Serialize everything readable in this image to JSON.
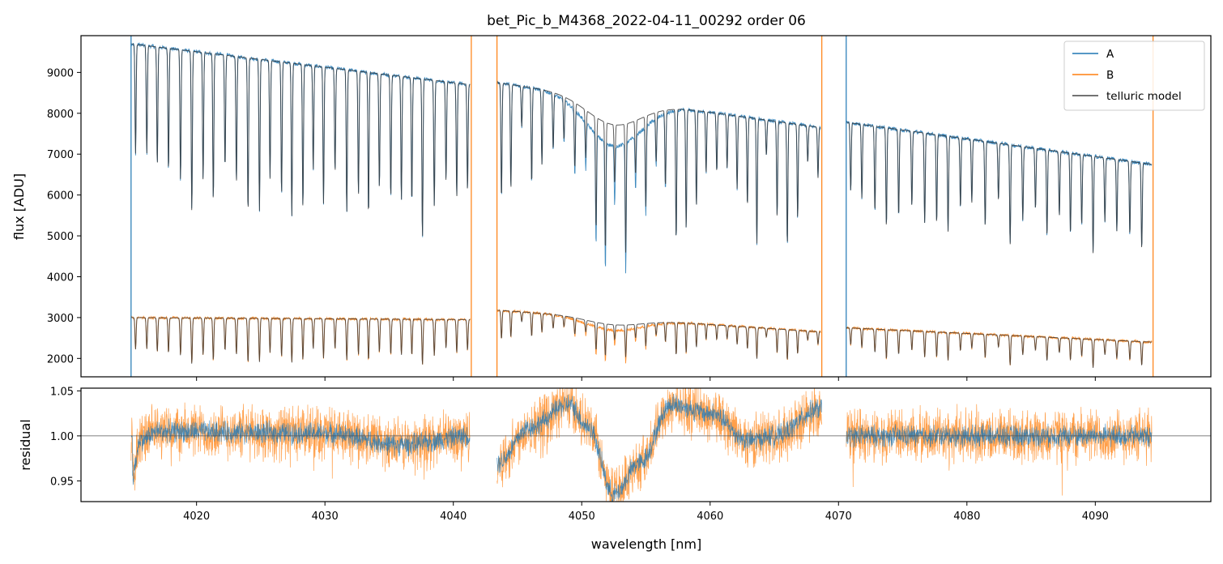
{
  "chart_data": [
    {
      "type": "line",
      "panel": "top",
      "title": "bet_Pic_b_M4368_2022-04-11_00292  order 06",
      "xlabel": "",
      "ylabel": "flux [ADU]",
      "xlim": [
        4011,
        4099
      ],
      "ylim": [
        1550,
        9900
      ],
      "yticks": [
        2000,
        3000,
        4000,
        5000,
        6000,
        7000,
        8000,
        9000
      ],
      "xticks": [
        4020,
        4030,
        4040,
        4050,
        4060,
        4070,
        4080,
        4090
      ],
      "segments": [
        {
          "x0": 4014.9,
          "x1": 4041.3,
          "a_start": 9700,
          "a_end": 8700,
          "b_start": 3000,
          "b_end": 2950,
          "line_spacing": 0.85,
          "a_depth": [
            2400,
            4000
          ],
          "b_depth": [
            700,
            1150
          ]
        },
        {
          "x0": 4043.4,
          "x1": 4068.6,
          "a_start": 8750,
          "a_end": 7650,
          "b_start": 3180,
          "b_end": 2650,
          "dip_center": 4052.5,
          "dip_a": 1150,
          "dip_b": 300,
          "line_spacing": 0.8,
          "a_depth": [
            800,
            3200
          ],
          "b_depth": [
            200,
            800
          ]
        },
        {
          "x0": 4070.6,
          "x1": 4094.4,
          "a_start": 7780,
          "a_end": 6750,
          "b_start": 2750,
          "b_end": 2400,
          "line_spacing": 0.95,
          "a_depth": [
            1400,
            2500
          ],
          "b_depth": [
            300,
            750
          ]
        }
      ],
      "series": [
        {
          "name": "A",
          "color": "#1f77b4"
        },
        {
          "name": "B",
          "color": "#ff7f0e"
        },
        {
          "name": "telluric model",
          "color": "#444444"
        }
      ],
      "edge_lines": [
        {
          "x": 4014.9,
          "series": "A"
        },
        {
          "x": 4041.4,
          "series": "B"
        },
        {
          "x": 4043.4,
          "series": "B"
        },
        {
          "x": 4068.7,
          "series": "B"
        },
        {
          "x": 4070.6,
          "series": "A"
        },
        {
          "x": 4094.5,
          "series": "B"
        }
      ],
      "legend": {
        "position": "top-right",
        "entries": [
          "A",
          "B",
          "telluric model"
        ]
      }
    },
    {
      "type": "line",
      "panel": "bottom",
      "xlabel": "wavelength [nm]",
      "ylabel": "residual",
      "xlim": [
        4011,
        4099
      ],
      "ylim": [
        0.927,
        1.053
      ],
      "yticks": [
        0.95,
        1.0,
        1.05
      ],
      "ytick_labels": [
        "0.95",
        "1.00",
        "1.05"
      ],
      "xticks": [
        4020,
        4030,
        4040,
        4050,
        4060,
        4070,
        4080,
        4090
      ],
      "reference_line": 1.0,
      "wave_shape": [
        {
          "x": 4015.0,
          "y": 0.955
        },
        {
          "x": 4015.6,
          "y": 0.995
        },
        {
          "x": 4017,
          "y": 1.005
        },
        {
          "x": 4030,
          "y": 1.003
        },
        {
          "x": 4036,
          "y": 0.99
        },
        {
          "x": 4041.3,
          "y": 1.0
        },
        {
          "x": 4043.4,
          "y": 0.97
        },
        {
          "x": 4046,
          "y": 1.01
        },
        {
          "x": 4049,
          "y": 1.035
        },
        {
          "x": 4050.5,
          "y": 1.01
        },
        {
          "x": 4052.5,
          "y": 0.935
        },
        {
          "x": 4054.5,
          "y": 0.97
        },
        {
          "x": 4057,
          "y": 1.035
        },
        {
          "x": 4060,
          "y": 1.025
        },
        {
          "x": 4063,
          "y": 0.995
        },
        {
          "x": 4065,
          "y": 1.0
        },
        {
          "x": 4068.6,
          "y": 1.03
        },
        {
          "x": 4070.6,
          "y": 1.0
        },
        {
          "x": 4094.4,
          "y": 1.0
        }
      ],
      "noise_b": 0.03,
      "noise_a": 0.012
    }
  ]
}
